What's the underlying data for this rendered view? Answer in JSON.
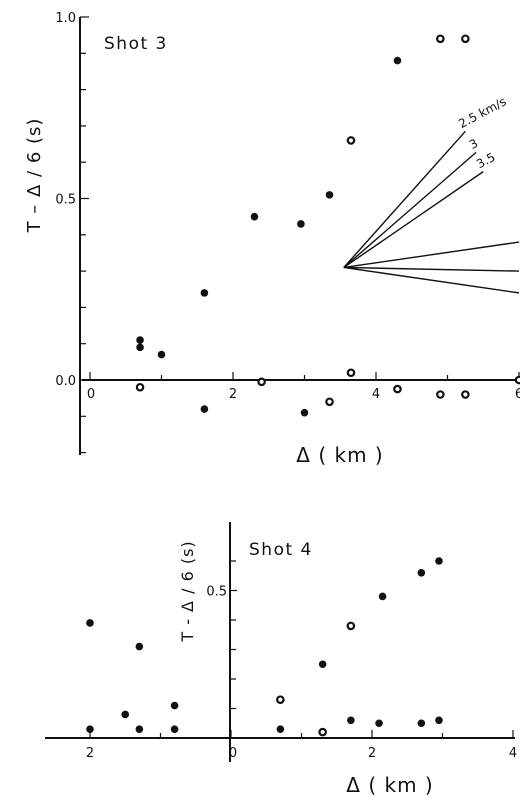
{
  "chart_data": [
    {
      "type": "scatter",
      "title": "Shot 3",
      "xlabel": "Δ    ( km )",
      "ylabel": "T  –  Δ / 6  (s)",
      "xlim": [
        -0.1,
        6.0
      ],
      "ylim": [
        -0.2,
        1.0
      ],
      "x_ticks": [
        0,
        2,
        4,
        6
      ],
      "y_tick_labels": [
        "1.0",
        "0.5",
        "0.0"
      ],
      "y_tick_values": [
        1.0,
        0.5,
        0.0
      ],
      "y_minor_ticks": [
        -0.2,
        -0.1,
        0.1,
        0.2,
        0.3,
        0.4,
        0.6,
        0.7,
        0.8,
        0.9
      ],
      "series": [
        {
          "marker": "filled",
          "points": [
            [
              0.7,
              0.11
            ],
            [
              0.7,
              0.09
            ],
            [
              1.0,
              0.07
            ],
            [
              1.6,
              0.24
            ],
            [
              1.6,
              -0.08
            ],
            [
              2.3,
              0.45
            ],
            [
              2.95,
              0.43
            ],
            [
              3.0,
              -0.09
            ],
            [
              3.35,
              0.51
            ],
            [
              4.3,
              0.88
            ]
          ]
        },
        {
          "marker": "open",
          "points": [
            [
              0.7,
              -0.02
            ],
            [
              2.4,
              -0.005
            ],
            [
              3.35,
              -0.06
            ],
            [
              3.65,
              0.66
            ],
            [
              3.65,
              0.02
            ],
            [
              4.3,
              -0.025
            ],
            [
              4.9,
              0.94
            ],
            [
              4.9,
              -0.04
            ],
            [
              5.25,
              0.94
            ],
            [
              5.25,
              -0.04
            ],
            [
              6.0,
              0.0
            ]
          ]
        }
      ],
      "velocity_fan": {
        "origin": [
          3.55,
          0.31
        ],
        "lines": [
          {
            "label": "2.5 km/s",
            "end": [
              5.25,
              0.685
            ]
          },
          {
            "label": "3",
            "end": [
              5.4,
              0.627
            ]
          },
          {
            "label": "3.5",
            "end": [
              5.5,
              0.574
            ]
          },
          {
            "label": "",
            "end": [
              6.0,
              0.38
            ]
          },
          {
            "label": "",
            "end": [
              6.0,
              0.3
            ]
          },
          {
            "label": "",
            "end": [
              6.0,
              0.24
            ]
          }
        ]
      }
    },
    {
      "type": "scatter",
      "title": "Shot 4",
      "xlabel": "Δ    ( km )",
      "ylabel": "T - Δ / 6  (s)",
      "xlim": [
        -2.1,
        4.0
      ],
      "ylim": [
        0.0,
        0.66
      ],
      "x_tick_labels": [
        "2",
        "0",
        "2",
        "4"
      ],
      "x_tick_values": [
        -2,
        0,
        2,
        4
      ],
      "y_tick_labels": [
        "0.5"
      ],
      "y_tick_values": [
        0.5
      ],
      "y_minor_ticks": [
        0.1,
        0.2,
        0.3,
        0.4,
        0.6
      ],
      "series": [
        {
          "marker": "filled",
          "points": [
            [
              -2.0,
              0.39
            ],
            [
              -1.5,
              0.08
            ],
            [
              -1.3,
              0.03
            ],
            [
              -1.3,
              0.31
            ],
            [
              -0.8,
              0.11
            ],
            [
              -0.8,
              0.03
            ],
            [
              -2.0,
              0.03
            ],
            [
              0.7,
              0.03
            ],
            [
              1.3,
              0.25
            ],
            [
              1.7,
              0.06
            ],
            [
              2.1,
              0.05
            ],
            [
              2.15,
              0.48
            ],
            [
              2.7,
              0.05
            ],
            [
              2.7,
              0.56
            ],
            [
              2.95,
              0.06
            ],
            [
              2.95,
              0.6
            ]
          ]
        },
        {
          "marker": "open",
          "points": [
            [
              0.7,
              0.13
            ],
            [
              1.3,
              0.02
            ],
            [
              1.7,
              0.38
            ]
          ]
        }
      ]
    }
  ]
}
